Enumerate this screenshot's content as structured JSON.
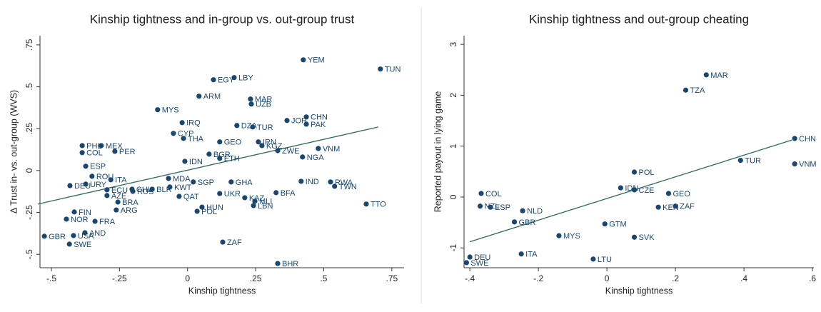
{
  "chart_data": [
    {
      "type": "scatter",
      "title": "Kinship tightness and in-group vs. out-group trust",
      "x_label": "Kinship tightness",
      "y_label": "Δ Trust in- vs. out-group (WVS)",
      "color": "#1a476f",
      "fit_color": "#2e6b5e",
      "xlim": [
        -0.542,
        0.795
      ],
      "ylim": [
        -0.58,
        0.805
      ],
      "xticks": [
        {
          "value": -0.5,
          "label": "-.5"
        },
        {
          "value": -0.25,
          "label": "-.25"
        },
        0,
        {
          "value": 0.25,
          "label": ".25"
        },
        {
          "value": 0.5,
          "label": ".5"
        },
        {
          "value": 0.75,
          "label": ".75"
        }
      ],
      "yticks": [
        {
          "value": -0.5,
          "label": "-.5"
        },
        {
          "value": -0.25,
          "label": "-.25"
        },
        0,
        {
          "value": 0.25,
          "label": ".25"
        },
        {
          "value": 0.5,
          "label": ".5"
        },
        {
          "value": 0.75,
          "label": ".75"
        }
      ],
      "labels": [
        "YEM",
        "TUN",
        "EGY",
        "LBY",
        "ARM",
        "MAR",
        "UZB",
        "MYS",
        "JOR",
        "CHN",
        "PAK",
        "IRQ",
        "DZA",
        "TUR",
        "CYP",
        "THA",
        "GEO",
        "IRN",
        "KGZ",
        "PHL",
        "MEX",
        "ZWE",
        "VNM",
        "COL",
        "PER",
        "NGA",
        "BGR",
        "ETH",
        "IDN",
        "ESP",
        "ROU",
        "ITA",
        "MDA",
        "SGP",
        "GHA",
        "IND",
        "RWA",
        "TWN",
        "DEU",
        "URY",
        "ECU",
        "CHL",
        "BLR",
        "KWT",
        "RUS",
        "UKR",
        "KAZ",
        "BFA",
        "MLI",
        "LBN",
        "QAT",
        "TTO",
        "AZE",
        "BRA",
        "ARG",
        "HUN",
        "POL",
        "FIN",
        "NOR",
        "FRA",
        "AND",
        "USA",
        "GBR",
        "SWE",
        "ZAF",
        "BHR"
      ],
      "x": [
        0.425,
        0.708,
        0.095,
        0.171,
        0.042,
        0.231,
        0.234,
        -0.11,
        0.365,
        0.436,
        0.436,
        -0.02,
        0.181,
        0.239,
        -0.052,
        -0.015,
        0.118,
        0.26,
        0.273,
        -0.387,
        -0.317,
        0.331,
        0.48,
        -0.387,
        -0.267,
        0.422,
        0.079,
        0.118,
        -0.01,
        -0.374,
        -0.351,
        -0.282,
        -0.07,
        0.021,
        0.16,
        0.417,
        0.525,
        0.54,
        -0.432,
        -0.374,
        -0.296,
        -0.204,
        -0.13,
        -0.065,
        -0.201,
        0.118,
        0.21,
        0.325,
        0.247,
        0.242,
        -0.031,
        0.656,
        -0.296,
        -0.256,
        -0.262,
        0.053,
        0.035,
        -0.416,
        -0.445,
        -0.34,
        -0.377,
        -0.419,
        -0.526,
        -0.434,
        0.129,
        0.331
      ],
      "y": [
        0.661,
        0.606,
        0.542,
        0.555,
        0.444,
        0.427,
        0.397,
        0.363,
        0.299,
        0.32,
        0.277,
        0.286,
        0.269,
        0.26,
        0.222,
        0.192,
        0.171,
        0.171,
        0.149,
        0.149,
        0.149,
        0.119,
        0.132,
        0.107,
        0.115,
        0.081,
        0.098,
        0.073,
        0.055,
        0.026,
        -0.034,
        -0.055,
        -0.047,
        -0.068,
        -0.068,
        -0.064,
        -0.068,
        -0.094,
        -0.09,
        -0.081,
        -0.115,
        -0.111,
        -0.111,
        -0.098,
        -0.124,
        -0.137,
        -0.162,
        -0.132,
        -0.183,
        -0.209,
        -0.154,
        -0.2,
        -0.149,
        -0.188,
        -0.235,
        -0.218,
        -0.243,
        -0.247,
        -0.29,
        -0.303,
        -0.371,
        -0.388,
        -0.392,
        -0.439,
        -0.427,
        -0.555
      ],
      "fit_x": [
        -0.55,
        0.7
      ],
      "fit_y": [
        -0.2,
        0.26
      ]
    },
    {
      "type": "scatter",
      "title": "Kinship tightness and out-group cheating",
      "x_label": "Kinship tightness",
      "y_label": "Reported payout in lying game",
      "color": "#1a476f",
      "fit_color": "#2e6b5e",
      "xlim": [
        -0.417,
        0.604
      ],
      "ylim": [
        -1.39,
        3.17
      ],
      "xticks": [
        {
          "value": -0.4,
          "label": "-.4"
        },
        {
          "value": -0.2,
          "label": "-.2"
        },
        0,
        {
          "value": 0.2,
          "label": ".2"
        },
        {
          "value": 0.4,
          "label": ".4"
        },
        {
          "value": 0.6,
          "label": ".6"
        }
      ],
      "yticks": [
        -1,
        0,
        1,
        2,
        3
      ],
      "labels": [
        "MAR",
        "TZA",
        "CHN",
        "VNM",
        "TUR",
        "POL",
        "IDN",
        "CZE",
        "GEO",
        "ZAF",
        "KEN",
        "COL",
        "NZL",
        "ESP",
        "NLD",
        "GBR",
        "GTM",
        "MYS",
        "SVK",
        "ITA",
        "LTU",
        "DEU",
        "SWE"
      ],
      "x": [
        0.29,
        0.23,
        0.548,
        0.548,
        0.39,
        0.08,
        0.04,
        0.08,
        0.18,
        0.2,
        0.15,
        -0.367,
        -0.37,
        -0.34,
        -0.246,
        -0.27,
        -0.006,
        -0.14,
        0.08,
        -0.25,
        -0.04,
        -0.4,
        -0.41
      ],
      "y": [
        2.4,
        2.1,
        1.15,
        0.65,
        0.72,
        0.49,
        0.18,
        0.14,
        0.07,
        -0.18,
        -0.2,
        0.07,
        -0.18,
        -0.2,
        -0.27,
        -0.49,
        -0.53,
        -0.76,
        -0.79,
        -1.12,
        -1.22,
        -1.18,
        -1.29
      ],
      "fit_x": [
        -0.4,
        0.54
      ],
      "fit_y": [
        -0.88,
        1.12
      ]
    }
  ]
}
